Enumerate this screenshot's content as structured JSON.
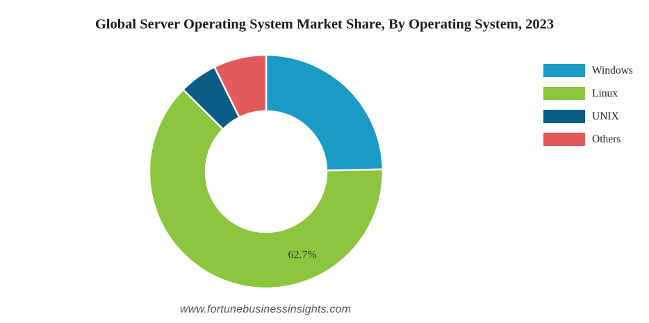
{
  "chart_data": {
    "type": "pie",
    "title": "Global Server Operating System Market Share, By Operating System, 2023",
    "donut": true,
    "categories": [
      "Windows",
      "Linux",
      "UNIX",
      "Others"
    ],
    "values": [
      24.7,
      62.7,
      5.3,
      7.3
    ],
    "colors": [
      "#1b9ac4",
      "#8cc63f",
      "#0a5c84",
      "#e35a5a"
    ],
    "data_labels": [
      "",
      "62.7%",
      "",
      ""
    ],
    "legend_position": "right"
  },
  "watermark": "www.fortunebusinessinsights.com"
}
